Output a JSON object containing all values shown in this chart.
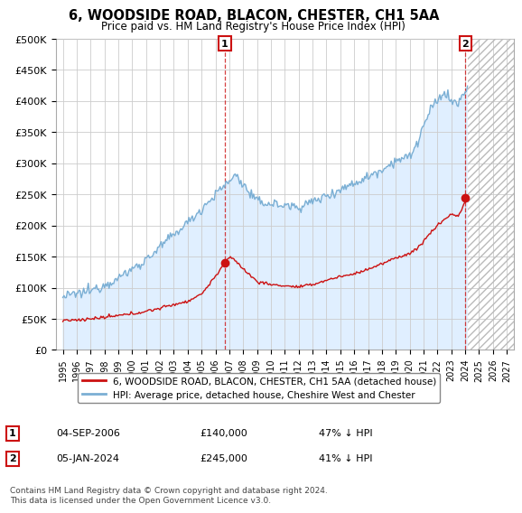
{
  "title": "6, WOODSIDE ROAD, BLACON, CHESTER, CH1 5AA",
  "subtitle": "Price paid vs. HM Land Registry's House Price Index (HPI)",
  "ylabel_ticks": [
    "£0",
    "£50K",
    "£100K",
    "£150K",
    "£200K",
    "£250K",
    "£300K",
    "£350K",
    "£400K",
    "£450K",
    "£500K"
  ],
  "ytick_values": [
    0,
    50000,
    100000,
    150000,
    200000,
    250000,
    300000,
    350000,
    400000,
    450000,
    500000
  ],
  "xlim_start": 1994.5,
  "xlim_end": 2027.5,
  "ylim": [
    0,
    500000
  ],
  "hpi_color": "#7bafd4",
  "hpi_fill_color": "#ddeeff",
  "price_color": "#cc1111",
  "marker1_date": 2006.67,
  "marker1_price": 140000,
  "marker2_date": 2024.02,
  "marker2_price": 245000,
  "sale1_date_str": "04-SEP-2006",
  "sale2_date_str": "05-JAN-2024",
  "sale1_price_str": "£140,000",
  "sale2_price_str": "£245,000",
  "sale1_hpi_str": "47% ↓ HPI",
  "sale2_hpi_str": "41% ↓ HPI",
  "legend_line1": "6, WOODSIDE ROAD, BLACON, CHESTER, CH1 5AA (detached house)",
  "legend_line2": "HPI: Average price, detached house, Cheshire West and Chester",
  "footnote": "Contains HM Land Registry data © Crown copyright and database right 2024.\nThis data is licensed under the Open Government Licence v3.0.",
  "background_color": "#ffffff",
  "grid_color": "#cccccc",
  "hatched_region_start": 2024.17,
  "hatched_region_end": 2027.5,
  "xticks": [
    1995,
    1996,
    1997,
    1998,
    1999,
    2000,
    2001,
    2002,
    2003,
    2004,
    2005,
    2006,
    2007,
    2008,
    2009,
    2010,
    2011,
    2012,
    2013,
    2014,
    2015,
    2016,
    2017,
    2018,
    2019,
    2020,
    2021,
    2022,
    2023,
    2024,
    2025,
    2026,
    2027
  ]
}
